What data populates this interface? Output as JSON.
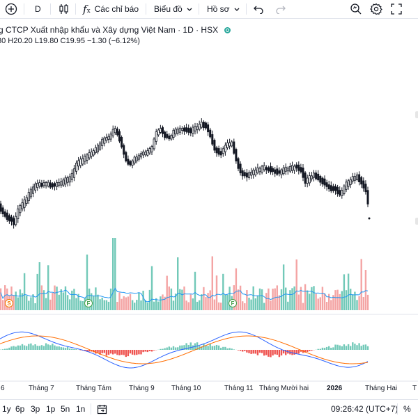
{
  "toolbar": {
    "add_symbol_icon": "plus-circle-icon",
    "interval": "D",
    "chart_type_icon": "candles-icon",
    "indicators_label": "Các chỉ báo",
    "indicators_icon": "fx-icon",
    "charts_label": "Biểu đồ",
    "profile_label": "Hồ sơ",
    "undo_icon": "undo-icon",
    "redo_icon": "redo-icon",
    "search_icon": "quick-search-icon",
    "settings_icon": "gear-icon",
    "fullscreen_icon": "fullscreen-icon"
  },
  "legend": {
    "title": "g CTCP Xuất nhập khẩu và Xây dựng Việt Nam · 1D · HSX",
    "ohlc": "80  H20.20  L19.80  C19.95  −1.30  (−6.12%)"
  },
  "markers": [
    {
      "letter": "S",
      "color": "#f57c00"
    },
    {
      "letter": "F",
      "color": "#43a047"
    },
    {
      "letter": "F",
      "color": "#43a047"
    }
  ],
  "time_axis": [
    "6",
    "Tháng 7",
    "Tháng Tám",
    "Tháng 9",
    "Tháng 10",
    "Tháng 11",
    "Tháng Mười hai",
    "2026",
    "Tháng Hai",
    "T"
  ],
  "bottombar": {
    "ranges": [
      "1y",
      "6p",
      "3p",
      "1p",
      "5n",
      "1n"
    ],
    "goto_date_icon": "calendar-icon",
    "clock": "09:26:42 (UTC+7)",
    "percent_label": "%"
  },
  "colors": {
    "up": "#26a69a",
    "down": "#ef5350",
    "candle": "#131722",
    "vol_up": "#72c9b8",
    "vol_down": "#f4a4a4",
    "vol_ma": "#2196f3",
    "macd": "#2962ff",
    "signal": "#ff6d00"
  }
}
